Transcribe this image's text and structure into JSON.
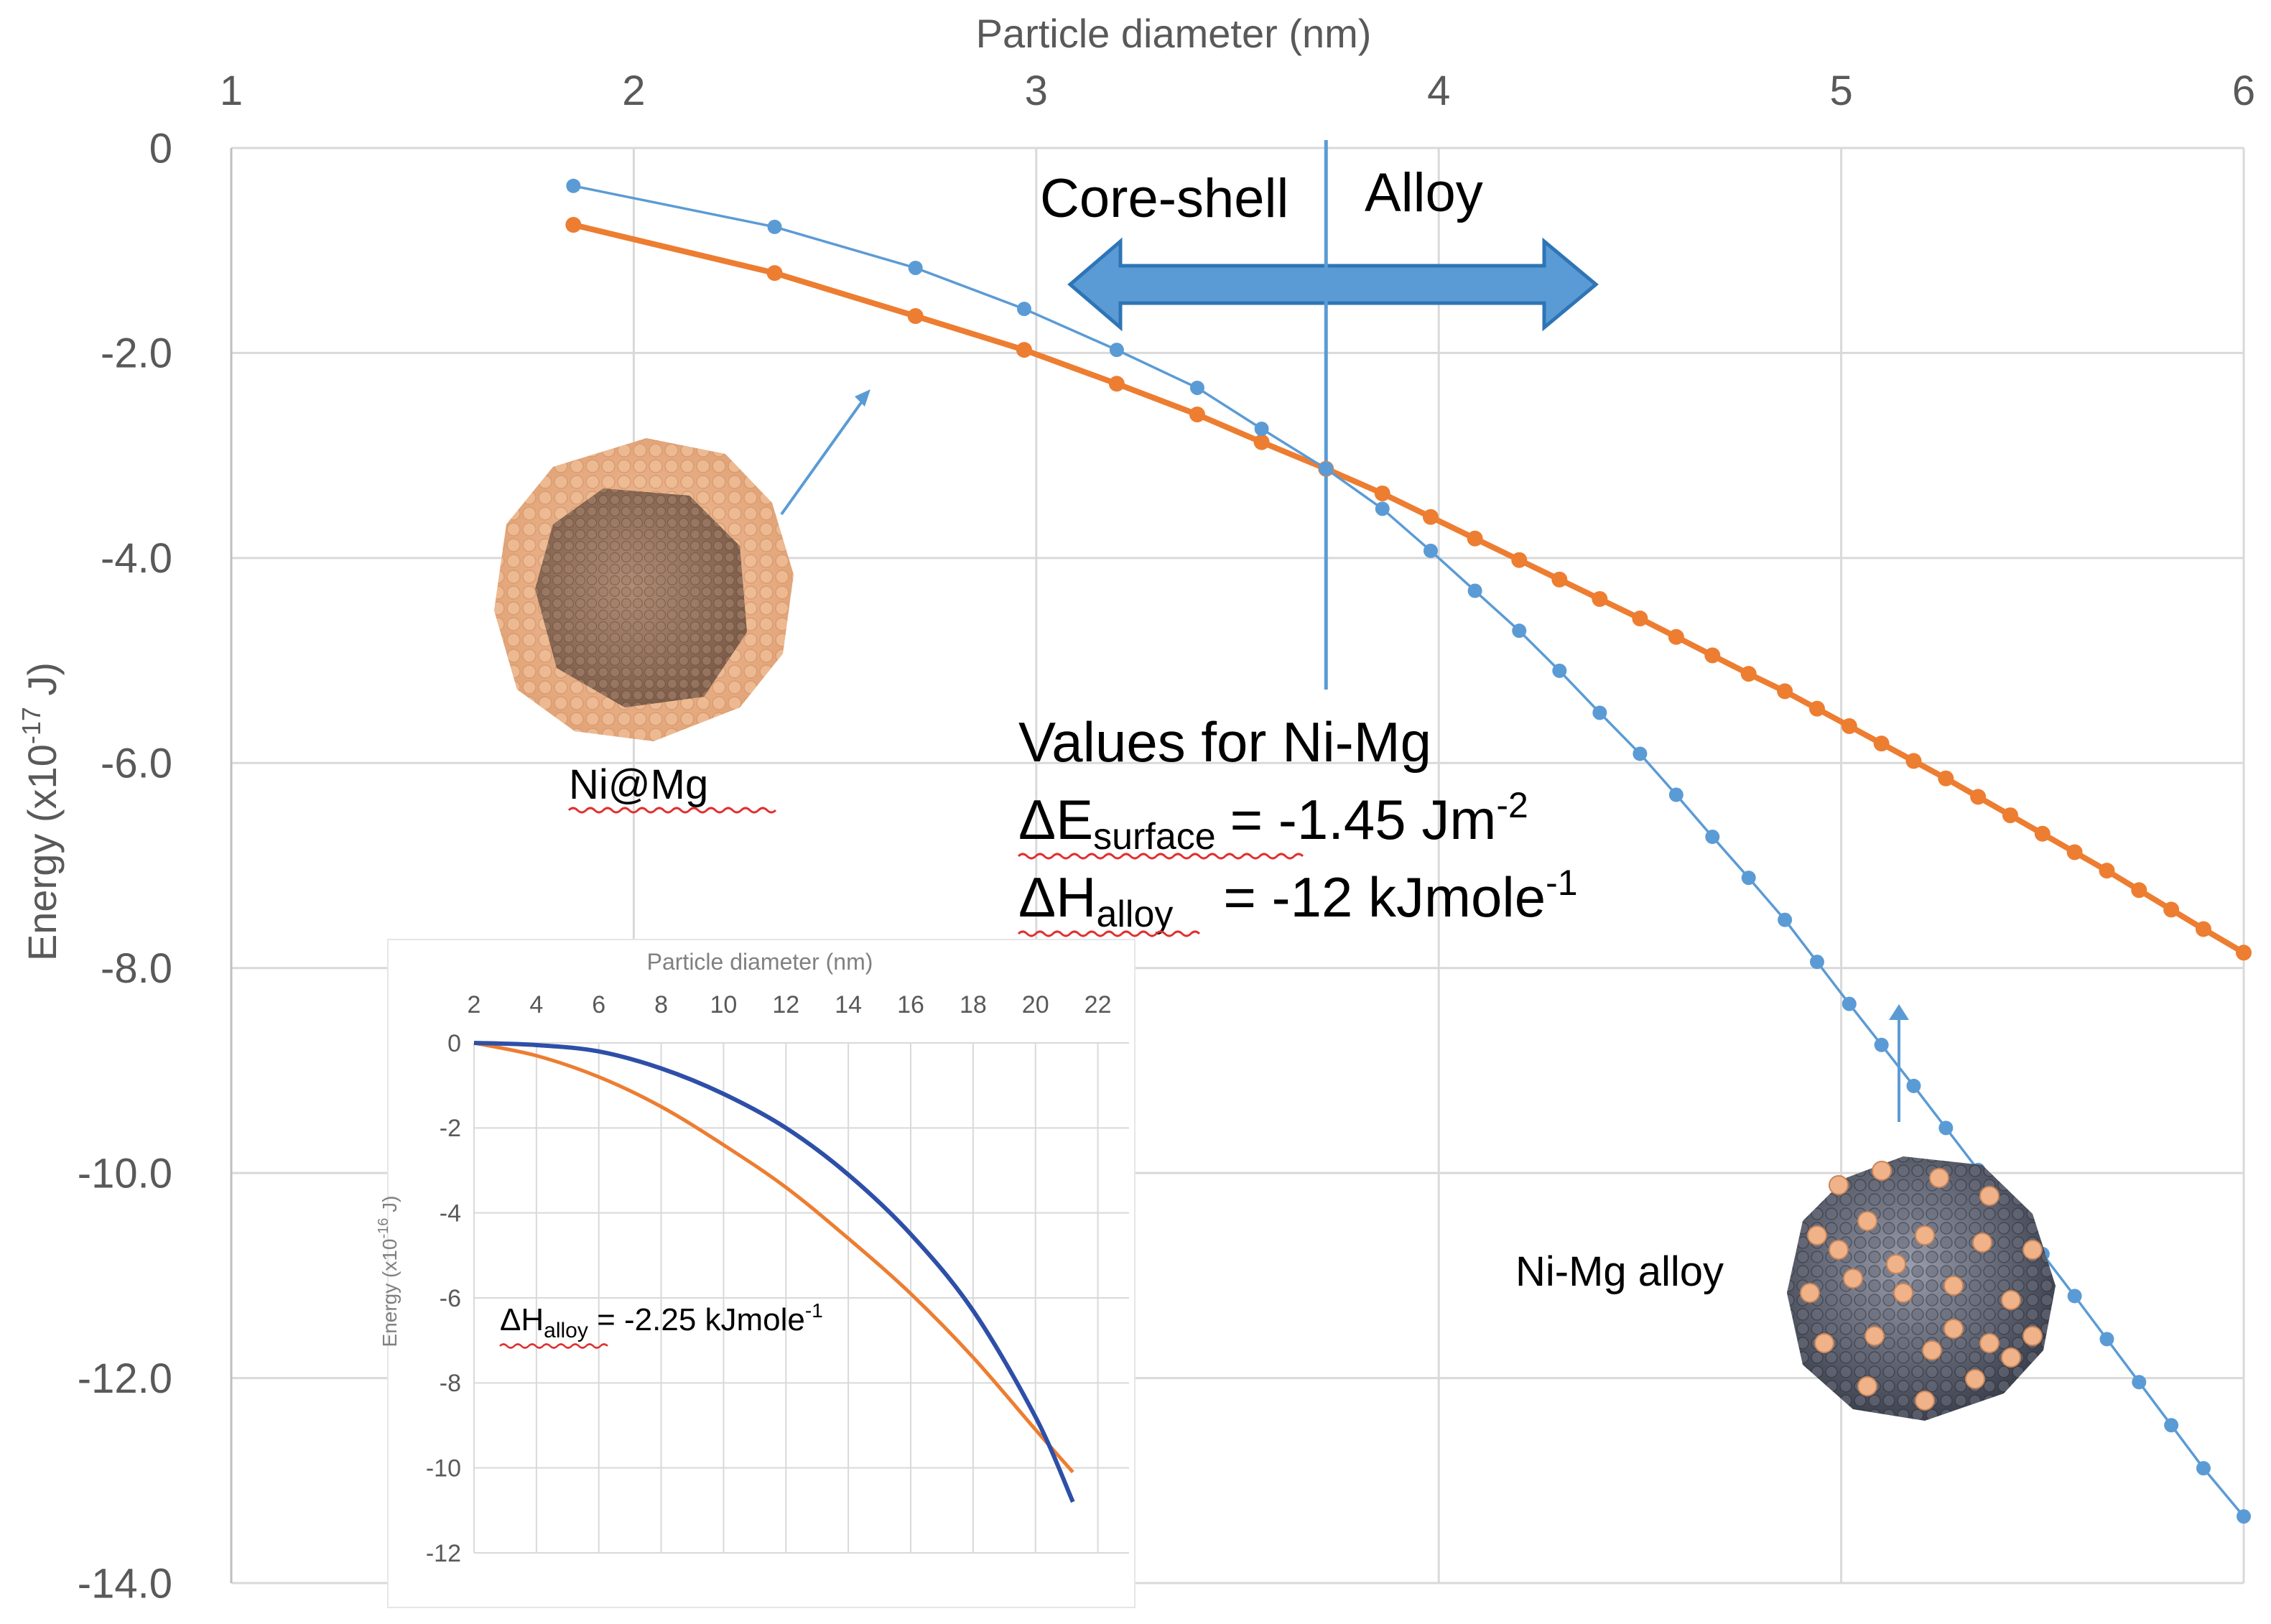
{
  "colors": {
    "core_shell": "#ED7D31",
    "alloy": "#5B9BD5",
    "inset_core_shell": "#ED7D31",
    "inset_alloy": "#2E4FA8",
    "grid": "#D9D9D9",
    "axis_text": "#595959",
    "arrow": "#5B9BD5"
  },
  "chart_data": [
    {
      "type": "line",
      "title": "",
      "xlabel": "Particle diameter (nm)",
      "ylabel_main": "Energy (x10",
      "ylabel_exp": "-17",
      "ylabel_unit": " J)",
      "xlim": [
        1,
        6
      ],
      "ylim": [
        -14,
        0
      ],
      "x_ticks": [
        1,
        2,
        3,
        4,
        5,
        6
      ],
      "x_tick_labels": [
        "1",
        "2",
        "3",
        "4",
        "5",
        "6"
      ],
      "y_ticks": [
        0,
        -2,
        -4,
        -6,
        -8,
        -10,
        -12,
        -14
      ],
      "y_tick_labels": [
        "0",
        "-2.0",
        "-4.0",
        "-6.0",
        "-8.0",
        "-10.0",
        "-12.0",
        "-14.0"
      ],
      "grid": true,
      "series": [
        {
          "name": "Core-shell (Ni@Mg)",
          "color_key": "core_shell",
          "x": [
            1.85,
            2.35,
            2.7,
            2.97,
            3.2,
            3.4,
            3.56,
            3.72,
            3.86,
            3.98,
            4.09,
            4.2,
            4.3,
            4.4,
            4.5,
            4.59,
            4.68,
            4.77,
            4.86,
            4.94,
            5.02,
            5.1,
            5.18,
            5.26,
            5.34,
            5.42,
            5.5,
            5.58,
            5.66,
            5.74,
            5.82,
            5.9,
            6.0
          ],
          "values": [
            -0.75,
            -1.22,
            -1.64,
            -1.97,
            -2.3,
            -2.6,
            -2.87,
            -3.13,
            -3.37,
            -3.6,
            -3.81,
            -4.02,
            -4.21,
            -4.4,
            -4.59,
            -4.77,
            -4.95,
            -5.13,
            -5.3,
            -5.47,
            -5.64,
            -5.81,
            -5.98,
            -6.15,
            -6.33,
            -6.51,
            -6.69,
            -6.87,
            -7.05,
            -7.24,
            -7.43,
            -7.62,
            -7.85
          ]
        },
        {
          "name": "Alloy (Ni-Mg)",
          "color_key": "alloy",
          "x": [
            1.85,
            2.35,
            2.7,
            2.97,
            3.2,
            3.4,
            3.56,
            3.72,
            3.86,
            3.98,
            4.09,
            4.2,
            4.3,
            4.4,
            4.5,
            4.59,
            4.68,
            4.77,
            4.86,
            4.94,
            5.02,
            5.1,
            5.18,
            5.26,
            5.34,
            5.42,
            5.5,
            5.58,
            5.66,
            5.74,
            5.82,
            5.9,
            6.0
          ],
          "values": [
            -0.37,
            -0.77,
            -1.17,
            -1.57,
            -1.97,
            -2.34,
            -2.74,
            -3.13,
            -3.52,
            -3.93,
            -4.32,
            -4.71,
            -5.1,
            -5.51,
            -5.91,
            -6.31,
            -6.72,
            -7.12,
            -7.53,
            -7.94,
            -8.35,
            -8.75,
            -9.15,
            -9.56,
            -9.97,
            -10.38,
            -10.79,
            -11.2,
            -11.62,
            -12.04,
            -12.46,
            -12.88,
            -13.35
          ]
        }
      ],
      "crossover_x": 3.72,
      "annotations": {
        "core_shell_label": "Core-shell",
        "alloy_label": "Alloy",
        "ni_at_mg_label": "Ni@Mg",
        "ni_mg_alloy_label": "Ni-Mg alloy",
        "values_title": "Values for Ni-Mg",
        "delta_e": "ΔE",
        "delta_e_sub": "surface",
        "delta_e_eq": "=  -1.45 Jm",
        "delta_e_exp": "-2",
        "delta_h": "ΔH",
        "delta_h_sub": "alloy",
        "delta_h_eq": "= -12 kJmole",
        "delta_h_exp": "-1"
      }
    },
    {
      "type": "line",
      "title": "",
      "xlabel": "Particle diameter (nm)",
      "ylabel_main": "Energy (x10",
      "ylabel_exp": "-16",
      "ylabel_unit": " J)",
      "xlim": [
        2,
        23
      ],
      "ylim": [
        -12,
        0
      ],
      "x_ticks": [
        2,
        4,
        6,
        8,
        10,
        12,
        14,
        16,
        18,
        20,
        22
      ],
      "x_tick_labels": [
        "2",
        "4",
        "6",
        "8",
        "10",
        "12",
        "14",
        "16",
        "18",
        "20",
        "22"
      ],
      "y_ticks": [
        0,
        -2,
        -4,
        -6,
        -8,
        -10,
        -12
      ],
      "y_tick_labels": [
        "0",
        "-2",
        "-4",
        "-6",
        "-8",
        "-10",
        "-12"
      ],
      "grid": true,
      "series": [
        {
          "name": "Core-shell",
          "color_key": "inset_core_shell",
          "x": [
            2,
            4,
            6,
            8,
            10,
            12,
            14,
            16,
            18,
            20,
            21.2
          ],
          "values": [
            0,
            -0.3,
            -0.8,
            -1.5,
            -2.4,
            -3.4,
            -4.6,
            -5.9,
            -7.4,
            -9.1,
            -10.1
          ]
        },
        {
          "name": "Alloy",
          "color_key": "inset_alloy",
          "x": [
            2,
            4,
            6,
            8,
            10,
            12,
            14,
            16,
            18,
            20,
            21.2
          ],
          "values": [
            0,
            -0.05,
            -0.2,
            -0.6,
            -1.2,
            -2.0,
            -3.1,
            -4.5,
            -6.3,
            -8.8,
            -10.8
          ]
        }
      ],
      "annotations": {
        "delta_h": "ΔH",
        "delta_h_sub": "alloy",
        "delta_h_eq": " = -2.25 kJmole",
        "delta_h_exp": "-1"
      }
    }
  ]
}
